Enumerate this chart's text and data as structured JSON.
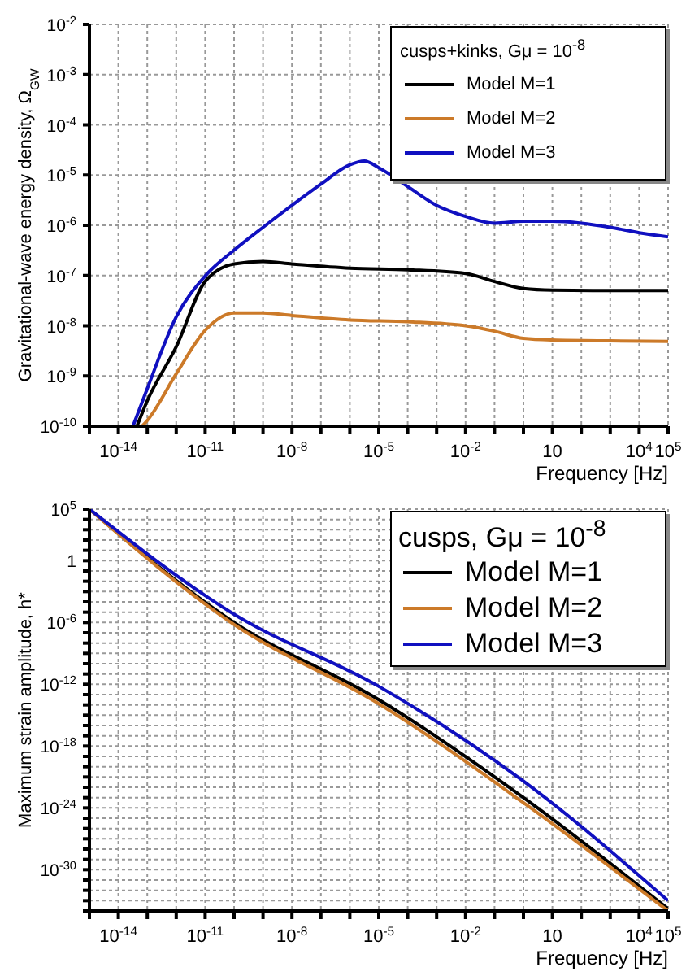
{
  "chart_data": [
    {
      "type": "line",
      "xlabel": "Frequency [Hz]",
      "ylabel": "Gravitational-wave energy density, Ω$_{GW}$",
      "legend_title": "cusps+kinks, Gμ = 10$^{-8}$",
      "log": "xy",
      "grid": true,
      "legend": "top right",
      "line_style": "solid",
      "marker": "none",
      "xlim": [
        1e-15,
        100000.0
      ],
      "ylim": [
        1e-10,
        0.01
      ],
      "xticks": [
        {
          "value": 1e-15,
          "label": null
        },
        {
          "value": 1e-14,
          "label": "10$^{-14}$"
        },
        {
          "value": 1e-13,
          "label": null
        },
        {
          "value": 1e-12,
          "label": null
        },
        {
          "value": 1e-11,
          "label": "10$^{-11}$"
        },
        {
          "value": 1e-10,
          "label": null
        },
        {
          "value": 1e-09,
          "label": null
        },
        {
          "value": 1e-08,
          "label": "10$^{-8}$"
        },
        {
          "value": 1e-07,
          "label": null
        },
        {
          "value": 1e-06,
          "label": null
        },
        {
          "value": 1e-05,
          "label": "10$^{-5}$"
        },
        {
          "value": 0.0001,
          "label": null
        },
        {
          "value": 0.001,
          "label": null
        },
        {
          "value": 0.01,
          "label": "10$^{-2}$"
        },
        {
          "value": 0.1,
          "label": null
        },
        {
          "value": 1,
          "label": null
        },
        10,
        {
          "value": 100,
          "label": null
        },
        {
          "value": 1000,
          "label": null
        },
        {
          "value": 10000.0,
          "label": "10$^{4}$"
        },
        {
          "value": 100000.0,
          "label": "10$^{5}$"
        }
      ],
      "yticks": [
        {
          "value": 1e-10,
          "label": "10$^{-10}$"
        },
        {
          "value": 1e-09,
          "label": "10$^{-9}$"
        },
        {
          "value": 1e-08,
          "label": "10$^{-8}$"
        },
        {
          "value": 1e-07,
          "label": "10$^{-7}$"
        },
        {
          "value": 1e-06,
          "label": "10$^{-6}$"
        },
        {
          "value": 1e-05,
          "label": "10$^{-5}$"
        },
        {
          "value": 0.0001,
          "label": "10$^{-4}$"
        },
        {
          "value": 0.001,
          "label": "10$^{-3}$"
        },
        {
          "value": 0.01,
          "label": "10$^{-2}$"
        }
      ],
      "series": [
        {
          "name": "Model M=1",
          "color": "#000000",
          "x": [
            4.4e-14,
            1e-13,
            1e-12,
            1e-11,
            1e-10,
            1e-09,
            1e-08,
            1e-06,
            0.0001,
            0.01,
            0.1,
            1,
            10,
            1000,
            100000.0
          ],
          "values": [
            1e-10,
            3.2e-10,
            3.8e-09,
            7.6e-08,
            1.7e-07,
            1.9e-07,
            1.7e-07,
            1.4e-07,
            1.3e-07,
            1.1e-07,
            7.6e-08,
            5.5e-08,
            5.1e-08,
            5e-08,
            5e-08
          ]
        },
        {
          "name": "Model M=2",
          "color": "#cc7a29",
          "x": [
            6.6e-14,
            1e-13,
            1e-12,
            1e-11,
            1e-10,
            1e-09,
            1e-08,
            1e-06,
            0.0001,
            0.01,
            0.1,
            1,
            10,
            1000,
            100000.0
          ],
          "values": [
            1e-10,
            1.3e-10,
            1.1e-09,
            8.1e-09,
            1.8e-08,
            1.8e-08,
            1.6e-08,
            1.3e-08,
            1.2e-08,
            1e-08,
            7.8e-09,
            5.6e-09,
            5.2e-09,
            5e-09,
            4.9e-09
          ]
        },
        {
          "name": "Model M=3",
          "color": "#1010c0",
          "x": [
            3.2e-14,
            1e-13,
            1e-12,
            1e-11,
            1e-10,
            1e-09,
            1e-08,
            1e-07,
            1e-06,
            3.2e-06,
            1e-05,
            0.0001,
            0.001,
            0.01,
            0.1,
            1,
            10,
            100,
            1000,
            10000.0,
            100000.0
          ],
          "values": [
            1e-10,
            5.6e-10,
            1.5e-08,
            9.8e-08,
            3.2e-07,
            9.1e-07,
            2.5e-06,
            6.6e-06,
            1.6e-05,
            1.9e-05,
            1.4e-05,
            5.9e-06,
            2.5e-06,
            1.5e-06,
            1.1e-06,
            1.2e-06,
            1.2e-06,
            1.1e-06,
            9.1e-07,
            7.1e-07,
            5.9e-07
          ]
        }
      ]
    },
    {
      "type": "line",
      "xlabel": "Frequency [Hz]",
      "ylabel": "Maximum strain amplitude, h*",
      "legend_title": "cusps, Gμ = 10$^{-8}$",
      "log": "xy",
      "grid": true,
      "legend": "top right",
      "line_style": "solid",
      "marker": "none",
      "xlim": [
        1e-15,
        100000.0
      ],
      "ylim": [
        1e-34,
        100000.0
      ],
      "xticks": [
        {
          "value": 1e-15,
          "label": null
        },
        {
          "value": 1e-14,
          "label": "10$^{-14}$"
        },
        {
          "value": 1e-13,
          "label": null
        },
        {
          "value": 1e-12,
          "label": null
        },
        {
          "value": 1e-11,
          "label": "10$^{-11}$"
        },
        {
          "value": 1e-10,
          "label": null
        },
        {
          "value": 1e-09,
          "label": null
        },
        {
          "value": 1e-08,
          "label": "10$^{-8}$"
        },
        {
          "value": 1e-07,
          "label": null
        },
        {
          "value": 1e-06,
          "label": null
        },
        {
          "value": 1e-05,
          "label": "10$^{-5}$"
        },
        {
          "value": 0.0001,
          "label": null
        },
        {
          "value": 0.001,
          "label": null
        },
        {
          "value": 0.01,
          "label": "10$^{-2}$"
        },
        {
          "value": 0.1,
          "label": null
        },
        {
          "value": 1,
          "label": null
        },
        10,
        {
          "value": 100,
          "label": null
        },
        {
          "value": 1000,
          "label": null
        },
        {
          "value": 10000.0,
          "label": "10$^{4}$"
        },
        {
          "value": 100000.0,
          "label": "10$^{5}$"
        }
      ],
      "yticks": [
        {
          "value": 1e-34,
          "label": null
        },
        {
          "value": 1e-33,
          "label": null
        },
        {
          "value": 1e-32,
          "label": null
        },
        {
          "value": 1e-31,
          "label": null
        },
        {
          "value": 1e-30,
          "label": "10$^{-30}$"
        },
        {
          "value": 1e-29,
          "label": null
        },
        {
          "value": 1e-28,
          "label": null
        },
        {
          "value": 1e-27,
          "label": null
        },
        {
          "value": 1e-26,
          "label": null
        },
        {
          "value": 1e-25,
          "label": null
        },
        {
          "value": 1e-24,
          "label": "10$^{-24}$"
        },
        {
          "value": 1e-23,
          "label": null
        },
        {
          "value": 1e-22,
          "label": null
        },
        {
          "value": 1e-21,
          "label": null
        },
        {
          "value": 1e-20,
          "label": null
        },
        {
          "value": 1e-19,
          "label": null
        },
        {
          "value": 1e-18,
          "label": "10$^{-18}$"
        },
        {
          "value": 1e-17,
          "label": null
        },
        {
          "value": 1e-16,
          "label": null
        },
        {
          "value": 1e-15,
          "label": null
        },
        {
          "value": 1e-14,
          "label": null
        },
        {
          "value": 1e-13,
          "label": null
        },
        {
          "value": 1e-12,
          "label": "10$^{-12}$"
        },
        {
          "value": 1e-11,
          "label": null
        },
        {
          "value": 1e-10,
          "label": null
        },
        {
          "value": 1e-09,
          "label": null
        },
        {
          "value": 1e-08,
          "label": null
        },
        {
          "value": 1e-07,
          "label": null
        },
        {
          "value": 1e-06,
          "label": "10$^{-6}$"
        },
        {
          "value": 1e-05,
          "label": null
        },
        {
          "value": 0.0001,
          "label": null
        },
        {
          "value": 0.001,
          "label": null
        },
        {
          "value": 0.01,
          "label": null
        },
        {
          "value": 0.1,
          "label": null
        },
        1,
        {
          "value": 10,
          "label": null
        },
        {
          "value": 100,
          "label": null
        },
        {
          "value": 1000,
          "label": null
        },
        {
          "value": 10000.0,
          "label": null
        },
        {
          "value": 100000.0,
          "label": "10$^{5}$"
        }
      ],
      "series": [
        {
          "name": "Model M=1",
          "color": "#000000",
          "x": [
            1e-15,
            1e-10,
            1e-05,
            1,
            100000.0
          ],
          "values": [
            100000.0,
            1e-06,
            3.2e-14,
            1e-23,
            1.6e-34
          ]
        },
        {
          "name": "Model M=2",
          "color": "#cc7a29",
          "x": [
            1e-15,
            1e-10,
            1e-05,
            1,
            100000.0
          ],
          "values": [
            100000.0,
            6.3e-07,
            1.3e-14,
            3.2e-24,
            1e-34
          ]
        },
        {
          "name": "Model M=3",
          "color": "#1010c0",
          "x": [
            1e-15,
            1e-10,
            1e-05,
            1,
            100000.0
          ],
          "values": [
            100000.0,
            6.3e-06,
            6.3e-13,
            4e-22,
            1e-33
          ]
        }
      ]
    }
  ]
}
